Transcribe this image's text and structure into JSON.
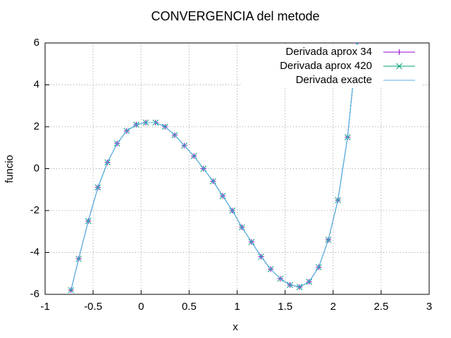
{
  "chart_data": {
    "type": "line",
    "title": "CONVERGENCIA del metode",
    "xlabel": "x",
    "ylabel": "funcio",
    "x": [
      -0.73,
      -0.65,
      -0.55,
      -0.45,
      -0.35,
      -0.25,
      -0.15,
      -0.05,
      0.05,
      0.15,
      0.25,
      0.35,
      0.45,
      0.55,
      0.65,
      0.75,
      0.85,
      0.95,
      1.05,
      1.15,
      1.25,
      1.35,
      1.45,
      1.55,
      1.65,
      1.75,
      1.85,
      1.95,
      2.05,
      2.15,
      2.25
    ],
    "series": [
      {
        "name": "Derivada aprox 34",
        "color": "#9400d3",
        "marker": "+",
        "values": [
          -5.8,
          -4.3,
          -2.5,
          -0.9,
          0.3,
          1.2,
          1.8,
          2.1,
          2.2,
          2.2,
          2.0,
          1.6,
          1.1,
          0.6,
          0.0,
          -0.6,
          -1.3,
          -2.0,
          -2.8,
          -3.5,
          -4.2,
          -4.8,
          -5.25,
          -5.55,
          -5.65,
          -5.4,
          -4.7,
          -3.4,
          -1.5,
          1.5,
          6.0
        ]
      },
      {
        "name": "Derivada aprox 420",
        "color": "#009e73",
        "marker": "x",
        "values": [
          -5.8,
          -4.3,
          -2.5,
          -0.9,
          0.3,
          1.2,
          1.8,
          2.1,
          2.2,
          2.2,
          2.0,
          1.6,
          1.1,
          0.6,
          0.0,
          -0.6,
          -1.3,
          -2.0,
          -2.8,
          -3.5,
          -4.2,
          -4.8,
          -5.25,
          -5.55,
          -5.65,
          -5.4,
          -4.7,
          -3.4,
          -1.5,
          1.5,
          6.0
        ]
      },
      {
        "name": "Derivada exacte",
        "color": "#56b4e9",
        "values": [
          -5.8,
          -4.3,
          -2.5,
          -0.9,
          0.3,
          1.2,
          1.8,
          2.1,
          2.2,
          2.2,
          2.0,
          1.6,
          1.1,
          0.6,
          0.0,
          -0.6,
          -1.3,
          -2.0,
          -2.8,
          -3.5,
          -4.2,
          -4.8,
          -5.25,
          -5.55,
          -5.65,
          -5.4,
          -4.7,
          -3.4,
          -1.5,
          1.5,
          6.0
        ]
      }
    ],
    "xlim": [
      -1,
      3
    ],
    "xticks": [
      -1,
      -0.5,
      0,
      0.5,
      1,
      1.5,
      2,
      2.5,
      3
    ],
    "ylim": [
      -6,
      6
    ],
    "yticks": [
      -6,
      -4,
      -2,
      0,
      2,
      4,
      6
    ],
    "grid": true,
    "legend": "top-right"
  }
}
